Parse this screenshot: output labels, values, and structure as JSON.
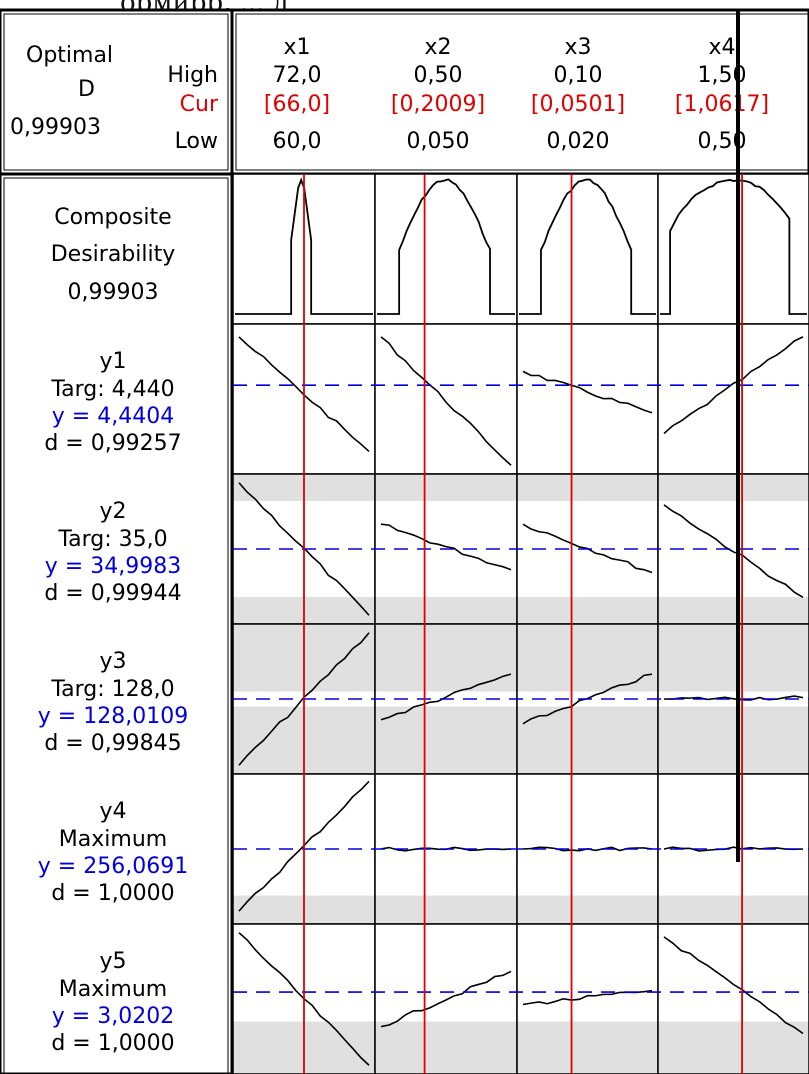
{
  "caption": "ормирр, ... д",
  "chart_data": {
    "type": "optimization-plot",
    "optimal_label_1": "Optimal",
    "optimal_label_2": "D",
    "optimal_value": "0,99903",
    "row_labels": {
      "high": "High",
      "cur": "Cur",
      "low": "Low"
    },
    "factors": [
      {
        "name": "x1",
        "high": "72,0",
        "cur": "[66,0]",
        "low": "60,0",
        "high_val": 72.0,
        "cur_val": 66.0,
        "low_val": 60.0
      },
      {
        "name": "x2",
        "high": "0,50",
        "cur": "[0,2009]",
        "low": "0,050",
        "high_val": 0.5,
        "cur_val": 0.2009,
        "low_val": 0.05
      },
      {
        "name": "x3",
        "high": "0,10",
        "cur": "[0,0501]",
        "low": "0,020",
        "high_val": 0.1,
        "cur_val": 0.0501,
        "low_val": 0.02
      },
      {
        "name": "x4",
        "high": "1,50",
        "cur": "[1,0617]",
        "low": "0,50",
        "high_val": 1.5,
        "cur_val": 1.0617,
        "low_val": 0.5
      }
    ],
    "composite": {
      "title_1": "Composite",
      "title_2": "Desirability",
      "value": "0,99903",
      "curves": [
        "spike",
        "dome",
        "dome",
        "wide-dome"
      ]
    },
    "responses": [
      {
        "name": "y1",
        "goal": "Targ: 4,440",
        "y": "y = 4,4404",
        "d": "d = 0,99257",
        "shaded": false,
        "ref_level": 0.6,
        "curves": [
          [
            0.95,
            0.12
          ],
          [
            0.95,
            0.02
          ],
          [
            0.7,
            0.4
          ],
          [
            0.25,
            0.95
          ]
        ]
      },
      {
        "name": "y2",
        "goal": "Targ: 35,0",
        "y": "y = 34,9983",
        "d": "d = 0,99944",
        "shaded": true,
        "band": [
          0.18,
          0.82
        ],
        "ref_level": 0.5,
        "curves": [
          [
            0.98,
            0.02
          ],
          [
            0.68,
            0.35
          ],
          [
            0.68,
            0.33
          ],
          [
            0.82,
            0.15
          ]
        ]
      },
      {
        "name": "y3",
        "goal": "Targ: 128,0",
        "y": "y = 128,0109",
        "d": "d = 0,99845",
        "shaded": true,
        "band": [
          0.45,
          0.55
        ],
        "ref_level": 0.5,
        "curves": [
          [
            0.02,
            0.98
          ],
          [
            0.35,
            0.68
          ],
          [
            0.32,
            0.68
          ],
          [
            0.5,
            0.51
          ]
        ]
      },
      {
        "name": "y4",
        "goal": "Maximum",
        "y": "y = 256,0691",
        "d": "d = 1,0000",
        "shaded": true,
        "band": [
          0.0,
          0.81
        ],
        "ref_level": 0.5,
        "curves": [
          [
            0.05,
            0.99
          ],
          [
            0.5,
            0.5
          ],
          [
            0.5,
            0.5
          ],
          [
            0.5,
            0.5
          ]
        ]
      },
      {
        "name": "y5",
        "goal": "Maximum",
        "y": "y = 3,0202",
        "d": "d = 1,0000",
        "shaded": true,
        "band": [
          0.0,
          0.65
        ],
        "ref_level": 0.55,
        "curves": [
          [
            0.98,
            0.02
          ],
          [
            0.3,
            0.7
          ],
          [
            0.46,
            0.56
          ],
          [
            0.95,
            0.25
          ]
        ]
      }
    ],
    "colors": {
      "current": "#e00000",
      "target": "#0000dd",
      "shade": "#e0e0e0",
      "curve": "#000000",
      "frame": "#000000"
    }
  }
}
